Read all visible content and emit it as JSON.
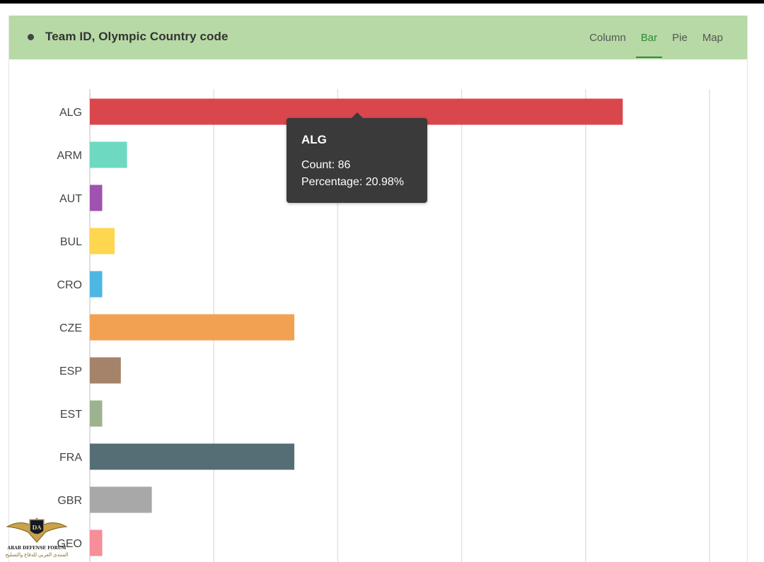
{
  "header": {
    "title": "Team ID, Olympic Country code",
    "tabs": [
      {
        "label": "Column",
        "active": false
      },
      {
        "label": "Bar",
        "active": true
      },
      {
        "label": "Pie",
        "active": false
      },
      {
        "label": "Map",
        "active": false
      }
    ]
  },
  "tooltip": {
    "title": "ALG",
    "count_line": "Count: 86",
    "percentage_line": "Percentage: 20.98%"
  },
  "watermark": {
    "line1": "ARAB DEFENSE FORUM",
    "line2": "المنتدى العربي للدفاع والتسليح"
  },
  "chart_data": {
    "type": "bar",
    "orientation": "horizontal",
    "categories": [
      "ALG",
      "ARM",
      "AUT",
      "BUL",
      "CRO",
      "CZE",
      "ESP",
      "EST",
      "FRA",
      "GBR",
      "GEO"
    ],
    "values": [
      86,
      6,
      2,
      4,
      2,
      33,
      5,
      2,
      33,
      10,
      2
    ],
    "colors": [
      "#d9474d",
      "#6dd9c0",
      "#a052b0",
      "#ffd64f",
      "#4db7e4",
      "#f2a152",
      "#a5826a",
      "#9db38f",
      "#556e75",
      "#a8a8a8",
      "#f58e98"
    ],
    "xlim": [
      0,
      100
    ],
    "grid": true,
    "title": "",
    "xlabel": "",
    "ylabel": ""
  }
}
